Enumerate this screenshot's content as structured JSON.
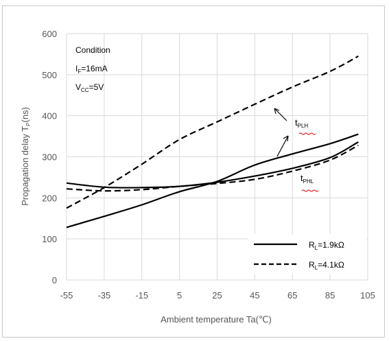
{
  "chart_data": {
    "type": "line",
    "title": "",
    "xlabel": "Ambient temperature Ta(℃)",
    "ylabel": "Propagation delay  T",
    "ylabel_sub": "P",
    "ylabel_unit": "(ns)",
    "xlim": [
      -55,
      105
    ],
    "ylim": [
      0,
      600
    ],
    "xticks": [
      -55,
      -35,
      -15,
      5,
      25,
      45,
      65,
      85,
      105
    ],
    "yticks": [
      0,
      100,
      200,
      300,
      400,
      500,
      600
    ],
    "grid": true,
    "condition": {
      "title": "Condition",
      "line1_main": "I",
      "line1_sub": "F",
      "line1_value": "=16mA",
      "line2_main": "V",
      "line2_sub": "CC",
      "line2_value": "=5V"
    },
    "legend": {
      "placement": "bottom-right",
      "items": [
        {
          "main": "R",
          "sub": "L",
          "value": "=1.9kΩ",
          "style": "solid"
        },
        {
          "main": "R",
          "sub": "L",
          "value": "=4.1kΩ",
          "style": "dashed"
        }
      ]
    },
    "annotations": {
      "tplh": {
        "main": "t",
        "sub": "PLH"
      },
      "tphl": {
        "main": "t",
        "sub": "PHL"
      }
    },
    "series": [
      {
        "label_group": "tPLH",
        "load": "RL=1.9kΩ",
        "style": "solid",
        "x": [
          -55,
          -35,
          -15,
          5,
          25,
          45,
          65,
          85,
          100
        ],
        "y": [
          128,
          155,
          183,
          215,
          240,
          280,
          307,
          332,
          355
        ]
      },
      {
        "label_group": "tPHL",
        "load": "RL=1.9kΩ",
        "style": "solid",
        "x": [
          -55,
          -35,
          -15,
          5,
          25,
          45,
          65,
          85,
          100
        ],
        "y": [
          236,
          226,
          225,
          228,
          238,
          253,
          272,
          298,
          336
        ]
      },
      {
        "label_group": "tPLH",
        "load": "RL=4.1kΩ",
        "style": "dashed",
        "x": [
          -55,
          -35,
          -15,
          5,
          25,
          45,
          65,
          85,
          100
        ],
        "y": [
          175,
          225,
          282,
          342,
          385,
          428,
          470,
          508,
          545
        ]
      },
      {
        "label_group": "tPHL",
        "load": "RL=4.1kΩ",
        "style": "dashed",
        "x": [
          -55,
          -35,
          -15,
          5,
          25,
          45,
          65,
          85,
          100
        ],
        "y": [
          222,
          217,
          220,
          228,
          235,
          245,
          265,
          292,
          328
        ]
      }
    ]
  }
}
